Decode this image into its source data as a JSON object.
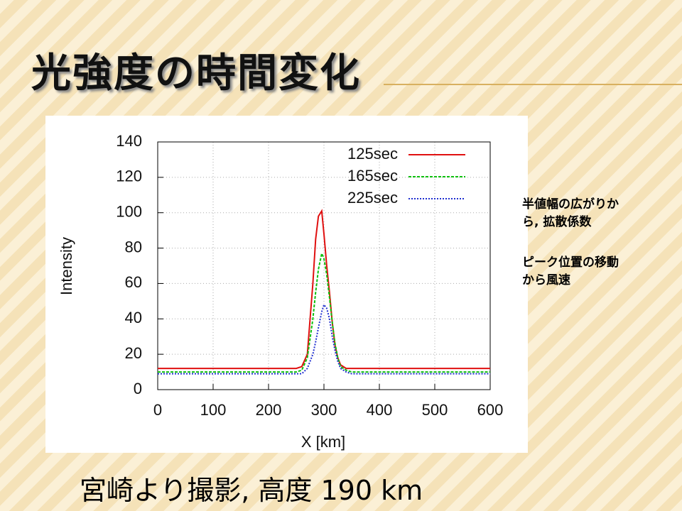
{
  "slide_title": "光強度の時間変化",
  "notes": [
    [
      "半値幅の広がりか",
      "ら, 拡散係数"
    ],
    [
      "ピーク位置の移動",
      "から風速"
    ]
  ],
  "caption": "宮崎より撮影, 高度 190 km",
  "chart_data": {
    "type": "line",
    "x_label": "X [km]",
    "y_label": "Intensity",
    "x": [
      0,
      250,
      260,
      270,
      280,
      285,
      290,
      296,
      300,
      305,
      310,
      315,
      320,
      325,
      330,
      340,
      350,
      600
    ],
    "series": [
      {
        "name": "125sec",
        "color": "#e01010",
        "linestyle": "solid",
        "values": [
          12,
          12,
          13,
          20,
          60,
          85,
          98,
          101,
          88,
          70,
          55,
          38,
          25,
          18,
          14,
          12,
          12,
          12
        ]
      },
      {
        "name": "165sec",
        "color": "#10c010",
        "linestyle": "dashed",
        "values": [
          10,
          10,
          11,
          18,
          40,
          55,
          68,
          77,
          74,
          65,
          52,
          38,
          26,
          18,
          13,
          11,
          10,
          10
        ]
      },
      {
        "name": "225sec",
        "color": "#2030d0",
        "linestyle": "dotted",
        "values": [
          9,
          9,
          9,
          12,
          20,
          27,
          35,
          44,
          48,
          46,
          40,
          30,
          22,
          16,
          12,
          10,
          9,
          9
        ]
      }
    ],
    "xlim": [
      0,
      600
    ],
    "xticks": [
      0,
      100,
      200,
      300,
      400,
      500,
      600
    ],
    "ylim": [
      0,
      140
    ],
    "yticks": [
      0,
      20,
      40,
      60,
      80,
      100,
      120,
      140
    ],
    "grid": true,
    "legend": "upper right"
  }
}
